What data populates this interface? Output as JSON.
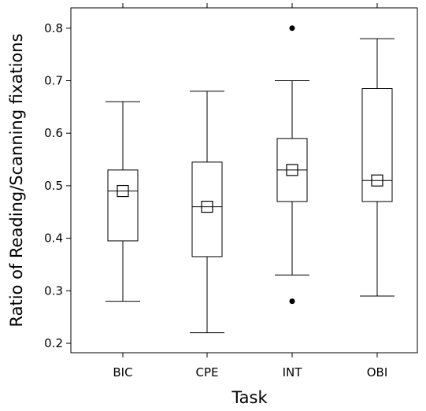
{
  "chart_data": {
    "type": "box",
    "title": "",
    "xlabel": "Task",
    "ylabel": "Ratio of Reading/Scanning fixations",
    "ylim": [
      0.18,
      0.84
    ],
    "yticks": [
      0.2,
      0.3,
      0.4,
      0.5,
      0.6,
      0.7,
      0.8
    ],
    "categories": [
      "BIC",
      "CPE",
      "INT",
      "OBI"
    ],
    "boxes": [
      {
        "category": "BIC",
        "whisker_low": 0.28,
        "q1": 0.395,
        "median": 0.49,
        "q3": 0.53,
        "whisker_high": 0.66,
        "mean": 0.49,
        "outliers": []
      },
      {
        "category": "CPE",
        "whisker_low": 0.22,
        "q1": 0.365,
        "median": 0.46,
        "q3": 0.545,
        "whisker_high": 0.68,
        "mean": 0.46,
        "outliers": []
      },
      {
        "category": "INT",
        "whisker_low": 0.33,
        "q1": 0.47,
        "median": 0.53,
        "q3": 0.59,
        "whisker_high": 0.7,
        "mean": 0.53,
        "outliers": [
          0.8,
          0.28
        ]
      },
      {
        "category": "OBI",
        "whisker_low": 0.29,
        "q1": 0.47,
        "median": 0.51,
        "q3": 0.685,
        "whisker_high": 0.78,
        "mean": 0.51,
        "outliers": []
      }
    ],
    "grid": false,
    "legend": "none"
  }
}
